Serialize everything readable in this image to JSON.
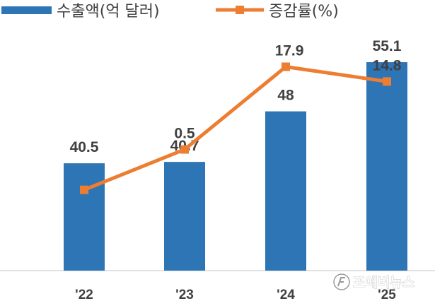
{
  "chart_data": {
    "type": "bar",
    "categories": [
      "'22",
      "'23",
      "'24",
      "'25"
    ],
    "series": [
      {
        "name": "수출액(억 달러)",
        "type": "bar",
        "axis": "left",
        "color": "#2e75b6",
        "values": [
          40.5,
          40.7,
          48,
          55.1
        ],
        "labels": [
          "40.5",
          "40.7",
          "48",
          "55.1"
        ]
      },
      {
        "name": "증감률(%)",
        "type": "line",
        "axis": "right",
        "color": "#ed7d31",
        "values": [
          null,
          0.5,
          17.9,
          14.8
        ],
        "point_values": [
          -8,
          0.5,
          17.9,
          14.8
        ],
        "labels": [
          "",
          "0.5",
          "17.9",
          "14.8"
        ]
      }
    ],
    "ylim_left": [
      25,
      60
    ],
    "ylim_right": [
      -25,
      26
    ],
    "legend_position": "top-left",
    "grid": false
  },
  "watermark": {
    "text": "포애버뉴스",
    "icon": "watermark-logo-icon"
  }
}
